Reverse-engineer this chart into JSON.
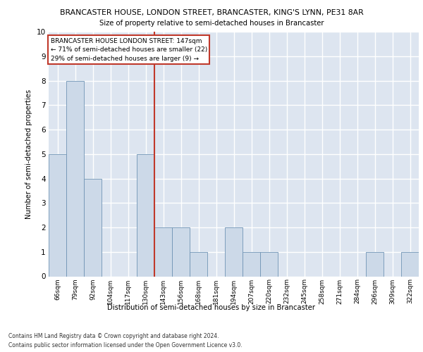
{
  "title": "BRANCASTER HOUSE, LONDON STREET, BRANCASTER, KING'S LYNN, PE31 8AR",
  "subtitle": "Size of property relative to semi-detached houses in Brancaster",
  "xlabel": "Distribution of semi-detached houses by size in Brancaster",
  "ylabel": "Number of semi-detached properties",
  "categories": [
    "66sqm",
    "79sqm",
    "92sqm",
    "104sqm",
    "117sqm",
    "130sqm",
    "143sqm",
    "156sqm",
    "168sqm",
    "181sqm",
    "194sqm",
    "207sqm",
    "220sqm",
    "232sqm",
    "245sqm",
    "258sqm",
    "271sqm",
    "284sqm",
    "296sqm",
    "309sqm",
    "322sqm"
  ],
  "values": [
    5,
    8,
    4,
    0,
    0,
    5,
    2,
    2,
    1,
    0,
    2,
    1,
    1,
    0,
    0,
    0,
    0,
    0,
    1,
    0,
    1
  ],
  "bar_color": "#ccd9e8",
  "bar_edge_color": "#7094b5",
  "vline_x_index": 6,
  "vline_color": "#c0392b",
  "annotation_text": "BRANCASTER HOUSE LONDON STREET: 147sqm\n← 71% of semi-detached houses are smaller (22)\n29% of semi-detached houses are larger (9) →",
  "annotation_box_color": "#ffffff",
  "annotation_box_edge": "#c0392b",
  "ylim": [
    0,
    10
  ],
  "footer_line1": "Contains HM Land Registry data © Crown copyright and database right 2024.",
  "footer_line2": "Contains public sector information licensed under the Open Government Licence v3.0.",
  "background_color": "#dde5f0",
  "grid_color": "#ffffff"
}
